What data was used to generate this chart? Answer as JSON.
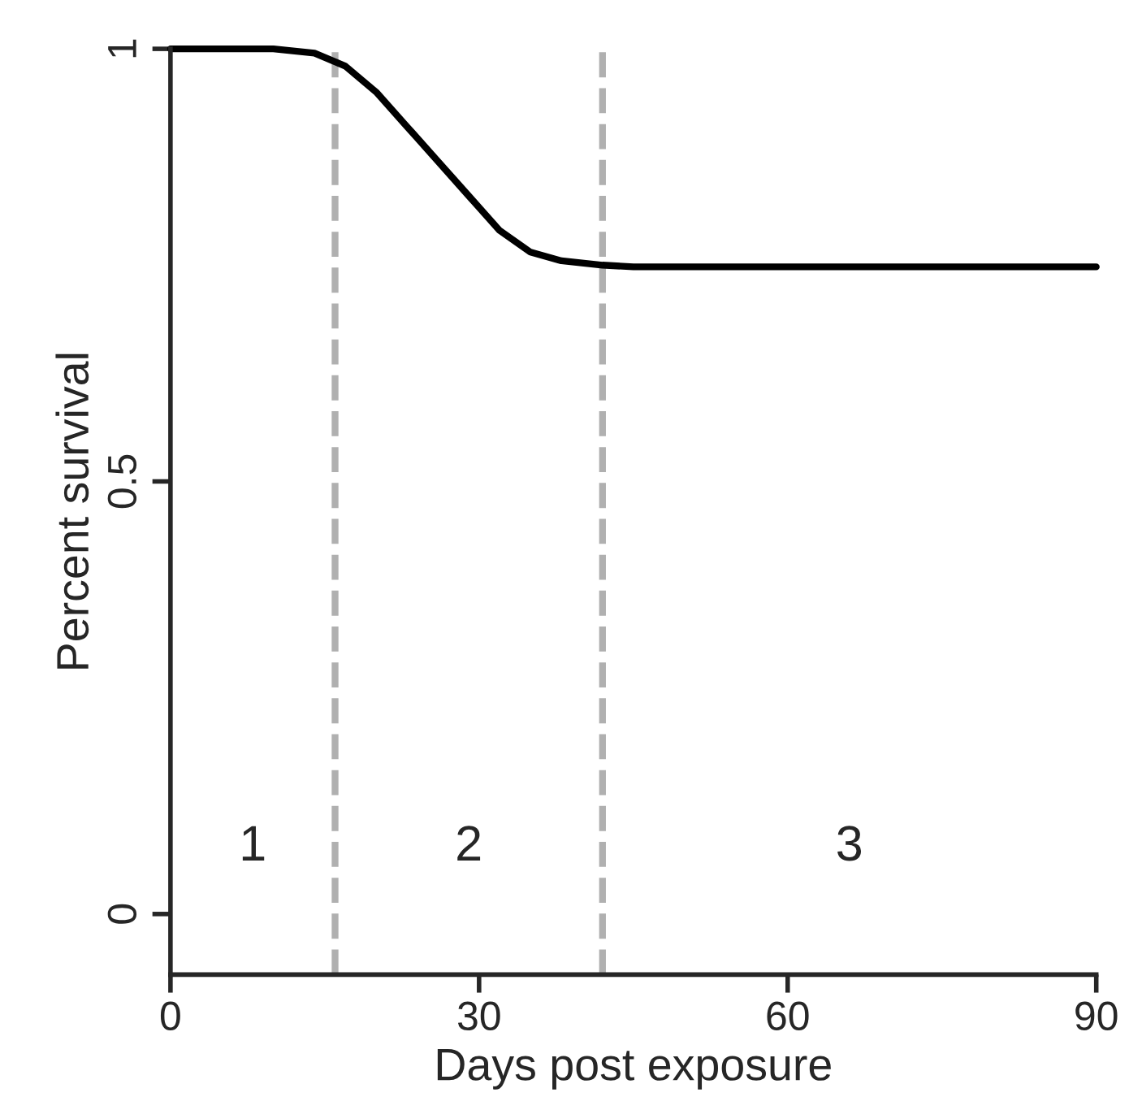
{
  "chart_data": {
    "type": "line",
    "xlabel": "Days post exposure",
    "ylabel": "Percent survival",
    "x": [
      0,
      10,
      14,
      17,
      20,
      23,
      26,
      29,
      32,
      35,
      38,
      42,
      45,
      90
    ],
    "series": [
      {
        "color": "#000000",
        "values": [
          1,
          1,
          0.995,
          0.98,
          0.95,
          0.91,
          0.87,
          0.83,
          0.79,
          0.765,
          0.755,
          0.75,
          0.748,
          0.748
        ]
      }
    ],
    "xlim": [
      0,
      90
    ],
    "xticks": [
      0,
      30,
      60,
      90
    ],
    "ylim": [
      -0.07,
      1
    ],
    "yticks": [
      0,
      0.5,
      1
    ],
    "ref_lines": [
      {
        "axis": "x",
        "value": 16,
        "color": "#b0b0b0",
        "line_style": "dashed"
      },
      {
        "axis": "x",
        "value": 42,
        "color": "#b0b0b0",
        "line_style": "dashed"
      }
    ],
    "annotations": [
      "1",
      "2",
      "3"
    ],
    "grid": false,
    "legend": false,
    "line_style": "solid",
    "marker": "none"
  }
}
